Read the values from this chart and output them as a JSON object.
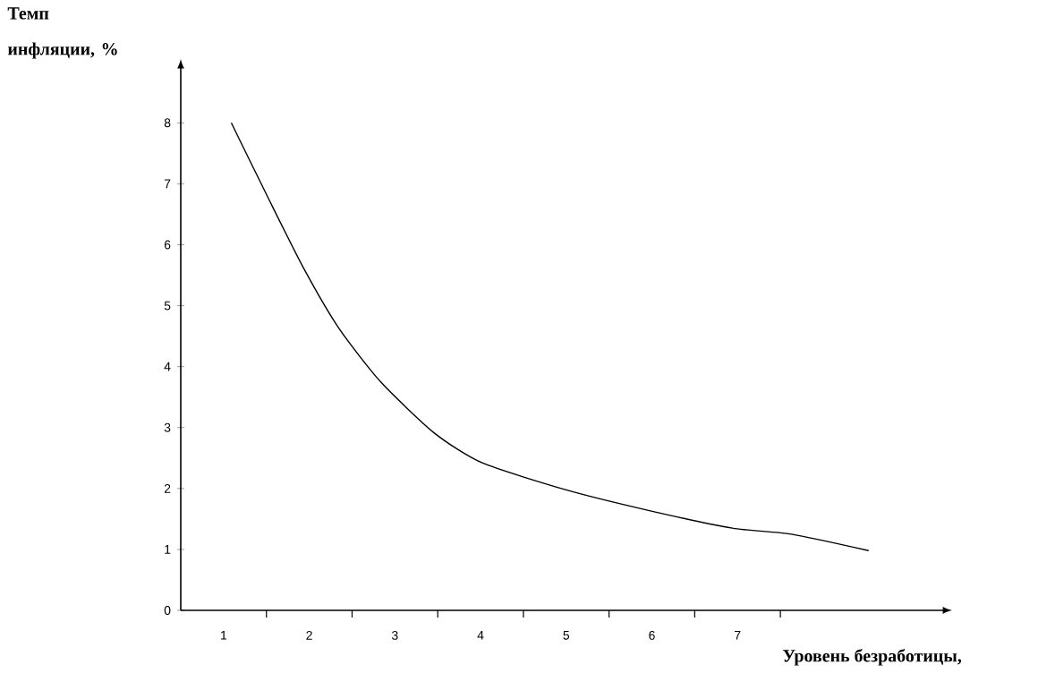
{
  "chart_data": {
    "type": "line",
    "xlabel": "Уровень безработицы,",
    "ylabel": "Темп инфляции, %",
    "x": [
      1.09,
      1.52,
      1.94,
      2.35,
      2.84,
      3.46,
      4.02,
      4.99,
      5.96,
      6.94,
      7.63,
      8.53
    ],
    "values": [
      8.0,
      6.77,
      5.6,
      4.62,
      3.74,
      2.91,
      2.42,
      1.98,
      1.64,
      1.35,
      1.25,
      0.98
    ],
    "color": "#000000",
    "line_style": "solid",
    "xlim": [
      0.5,
      9.4
    ],
    "ylim": [
      0,
      8.9
    ],
    "xticks": [
      1,
      2,
      3,
      4,
      5,
      6,
      7,
      {
        "value": 1.5,
        "label": null
      },
      {
        "value": 2.5,
        "label": null
      },
      {
        "value": 3.5,
        "label": null
      },
      {
        "value": 4.5,
        "label": null
      },
      {
        "value": 5.5,
        "label": null
      },
      {
        "value": 6.5,
        "label": null
      },
      {
        "value": 7.5,
        "label": null
      }
    ],
    "yticks": [
      {
        "value": 0,
        "label": "0"
      },
      1,
      2,
      3,
      4,
      5,
      6,
      7,
      8
    ]
  }
}
